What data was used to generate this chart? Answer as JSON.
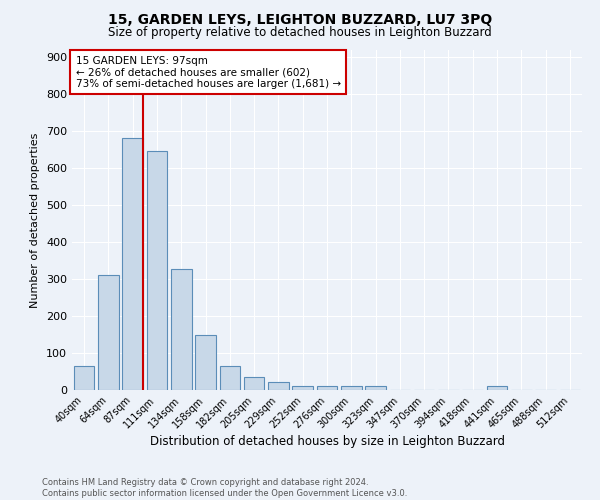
{
  "title1": "15, GARDEN LEYS, LEIGHTON BUZZARD, LU7 3PQ",
  "title2": "Size of property relative to detached houses in Leighton Buzzard",
  "xlabel": "Distribution of detached houses by size in Leighton Buzzard",
  "ylabel": "Number of detached properties",
  "footnote": "Contains HM Land Registry data © Crown copyright and database right 2024.\nContains public sector information licensed under the Open Government Licence v3.0.",
  "bin_labels": [
    "40sqm",
    "64sqm",
    "87sqm",
    "111sqm",
    "134sqm",
    "158sqm",
    "182sqm",
    "205sqm",
    "229sqm",
    "252sqm",
    "276sqm",
    "300sqm",
    "323sqm",
    "347sqm",
    "370sqm",
    "394sqm",
    "418sqm",
    "441sqm",
    "465sqm",
    "488sqm",
    "512sqm"
  ],
  "bin_values": [
    65,
    310,
    682,
    648,
    328,
    149,
    65,
    35,
    22,
    10,
    10,
    10,
    10,
    0,
    0,
    0,
    0,
    10,
    0,
    0,
    0
  ],
  "bar_color": "#c8d8e8",
  "bar_edge_color": "#5b8db8",
  "background_color": "#edf2f9",
  "grid_color": "#ffffff",
  "vline_color": "#cc0000",
  "annotation_text": "15 GARDEN LEYS: 97sqm\n← 26% of detached houses are smaller (602)\n73% of semi-detached houses are larger (1,681) →",
  "annotation_box_color": "#ffffff",
  "annotation_box_edge": "#cc0000",
  "ylim": [
    0,
    920
  ],
  "yticks": [
    0,
    100,
    200,
    300,
    400,
    500,
    600,
    700,
    800,
    900
  ]
}
